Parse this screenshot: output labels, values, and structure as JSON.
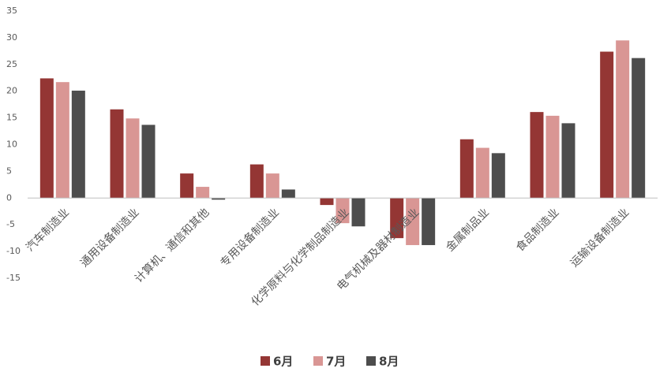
{
  "chart_data": {
    "type": "bar",
    "categories": [
      "汽车制造业",
      "通用设备制造业",
      "计算机、通信和其他",
      "专用设备制造业",
      "化学原料与化学制品制造业",
      "电气机械及器材制造业",
      "金属制品业",
      "食品制造业",
      "运输设备制造业"
    ],
    "series": [
      {
        "name": "6月",
        "color": "#943634",
        "values": [
          22.4,
          16.6,
          4.6,
          6.3,
          -1.3,
          -7.5,
          11.0,
          16.1,
          27.4
        ]
      },
      {
        "name": "7月",
        "color": "#d99694",
        "values": [
          21.7,
          14.9,
          2.1,
          4.6,
          -4.7,
          -8.8,
          9.4,
          15.4,
          29.5
        ]
      },
      {
        "name": "8月",
        "color": "#4d4d4d",
        "values": [
          20.1,
          13.7,
          -0.3,
          1.6,
          -5.3,
          -8.8,
          8.4,
          14.0,
          26.2
        ]
      }
    ],
    "ylim": [
      -15,
      35
    ],
    "yticks": [
      -15,
      -10,
      -5,
      0,
      5,
      10,
      15,
      20,
      25,
      30,
      35
    ],
    "grid": false
  }
}
